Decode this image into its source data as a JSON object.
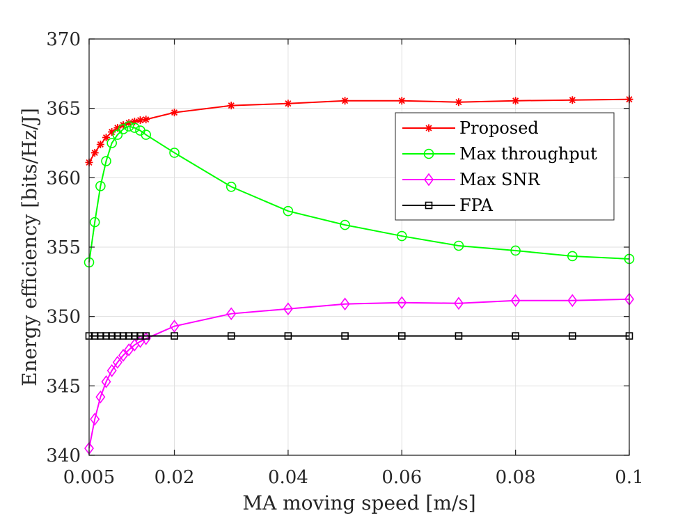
{
  "chart_data": {
    "type": "line",
    "title": "",
    "xlabel": "MA moving speed [m/s]",
    "ylabel": "Energy efficiency [bits/Hz/J]",
    "xlim": [
      0.005,
      0.1
    ],
    "ylim": [
      340,
      370
    ],
    "xticks": [
      0.005,
      0.02,
      0.04,
      0.06,
      0.08,
      0.1
    ],
    "xtick_labels": [
      "0.005",
      "0.02",
      "0.04",
      "0.06",
      "0.08",
      "0.1"
    ],
    "yticks": [
      340,
      345,
      350,
      355,
      360,
      365,
      370
    ],
    "ytick_labels": [
      "340",
      "345",
      "350",
      "355",
      "360",
      "365",
      "370"
    ],
    "grid": true,
    "legend_position": "right",
    "x": [
      0.005,
      0.006,
      0.007,
      0.008,
      0.009,
      0.01,
      0.011,
      0.012,
      0.013,
      0.014,
      0.015,
      0.02,
      0.03,
      0.04,
      0.05,
      0.06,
      0.07,
      0.08,
      0.09,
      0.1
    ],
    "series": [
      {
        "name": "Proposed",
        "color": "#ff0000",
        "marker": "asterisk",
        "values": [
          361.1,
          361.8,
          362.4,
          362.9,
          363.3,
          363.6,
          363.8,
          363.95,
          364.05,
          364.15,
          364.2,
          364.7,
          365.2,
          365.35,
          365.55,
          365.55,
          365.45,
          365.55,
          365.6,
          365.65
        ]
      },
      {
        "name": "Max throughput",
        "color": "#00ff00",
        "marker": "circle",
        "values": [
          353.9,
          356.8,
          359.4,
          361.2,
          362.5,
          363.1,
          363.5,
          363.7,
          363.6,
          363.4,
          363.1,
          361.8,
          359.35,
          357.6,
          356.6,
          355.8,
          355.1,
          354.75,
          354.35,
          354.15
        ]
      },
      {
        "name": "Max SNR",
        "color": "#ff00ff",
        "marker": "diamond",
        "values": [
          340.5,
          342.6,
          344.2,
          345.3,
          346.1,
          346.7,
          347.2,
          347.6,
          347.95,
          348.2,
          348.4,
          349.3,
          350.2,
          350.55,
          350.9,
          351.0,
          350.95,
          351.15,
          351.15,
          351.25
        ]
      },
      {
        "name": "FPA",
        "color": "#000000",
        "marker": "square",
        "values": [
          348.6,
          348.6,
          348.6,
          348.6,
          348.6,
          348.6,
          348.6,
          348.6,
          348.6,
          348.6,
          348.6,
          348.6,
          348.6,
          348.6,
          348.6,
          348.6,
          348.6,
          348.6,
          348.6,
          348.6
        ]
      }
    ]
  }
}
